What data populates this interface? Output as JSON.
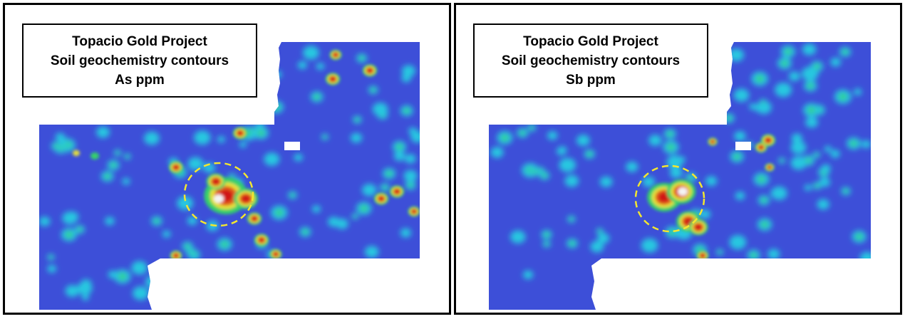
{
  "panels": [
    {
      "id": "as",
      "title_lines": [
        "Topacio Gold Project",
        "Soil geochemistry contours",
        "As ppm"
      ],
      "element": "As"
    },
    {
      "id": "sb",
      "title_lines": [
        "Topacio Gold Project",
        "Soil geochemistry contours",
        "Sb ppm"
      ],
      "element": "Sb"
    }
  ],
  "colors": {
    "background_low": "#3d4fd8",
    "moderate": "#28c8e0",
    "elevated": "#36d06a",
    "high": "#e6e13a",
    "very_high": "#e05a1e",
    "peak": "#d01818",
    "max": "#f4f4f4",
    "target_circle": "#f2e630"
  }
}
